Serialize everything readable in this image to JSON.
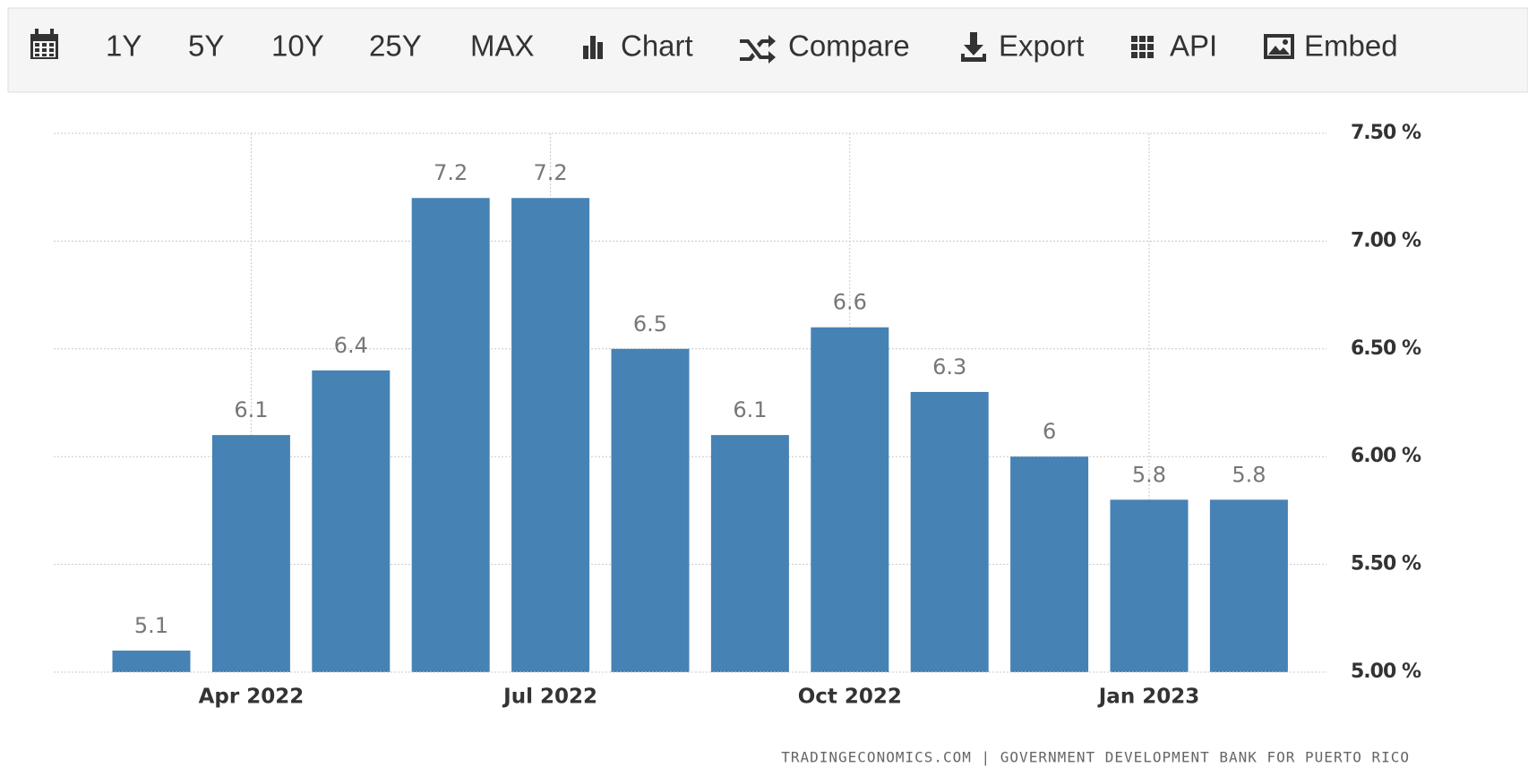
{
  "toolbar": {
    "items": [
      "1Y",
      "5Y",
      "10Y",
      "25Y",
      "MAX",
      "Chart",
      "Compare",
      "Export",
      "API",
      "Embed"
    ]
  },
  "chart_data": {
    "type": "bar",
    "categories": [
      null,
      "Apr 2022",
      null,
      null,
      "Jul 2022",
      null,
      null,
      "Oct 2022",
      null,
      null,
      "Jan 2023",
      null
    ],
    "values": [
      5.1,
      6.1,
      6.4,
      7.2,
      7.2,
      6.5,
      6.1,
      6.6,
      6.3,
      6,
      5.8,
      5.8
    ],
    "color": "#4682b4",
    "ylim": [
      5,
      7.5
    ],
    "yticks": [
      {
        "value": 5,
        "label": "5.00 %"
      },
      {
        "value": 5.5,
        "label": "5.50 %"
      },
      {
        "value": 6,
        "label": "6.00 %"
      },
      {
        "value": 6.5,
        "label": "6.50 %"
      },
      {
        "value": 7,
        "label": "7.00 %"
      },
      {
        "value": 7.5,
        "label": "7.50 %"
      }
    ],
    "grid": true
  },
  "footer": "TRADINGECONOMICS.COM | GOVERNMENT DEVELOPMENT BANK FOR PUERTO RICO"
}
